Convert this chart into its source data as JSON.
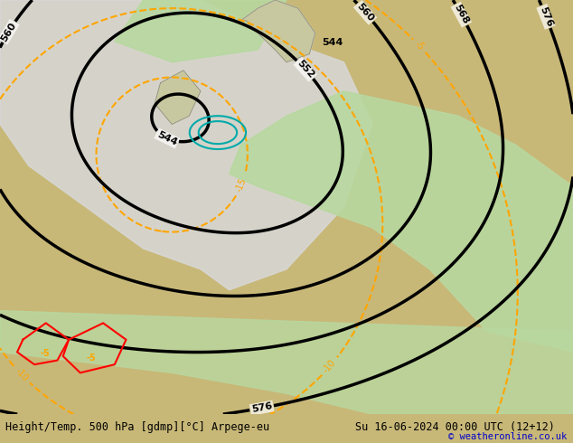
{
  "title_left": "Height/Temp. 500 hPa [gdmp][°C] Arpege-eu",
  "title_right": "Su 16-06-2024 00:00 UTC (12+12)",
  "copyright": "© weatheronline.co.uk",
  "bg_color": "#c8b878",
  "land_color": "#c8c8a0",
  "sea_color": "#d8d8d8",
  "green_zone_color": "#b8d8a0",
  "white_zone_color": "#f0f0f0",
  "footer_bg": "#e8e8e8",
  "footer_text_color": "#000000",
  "copyright_color": "#0000cc"
}
